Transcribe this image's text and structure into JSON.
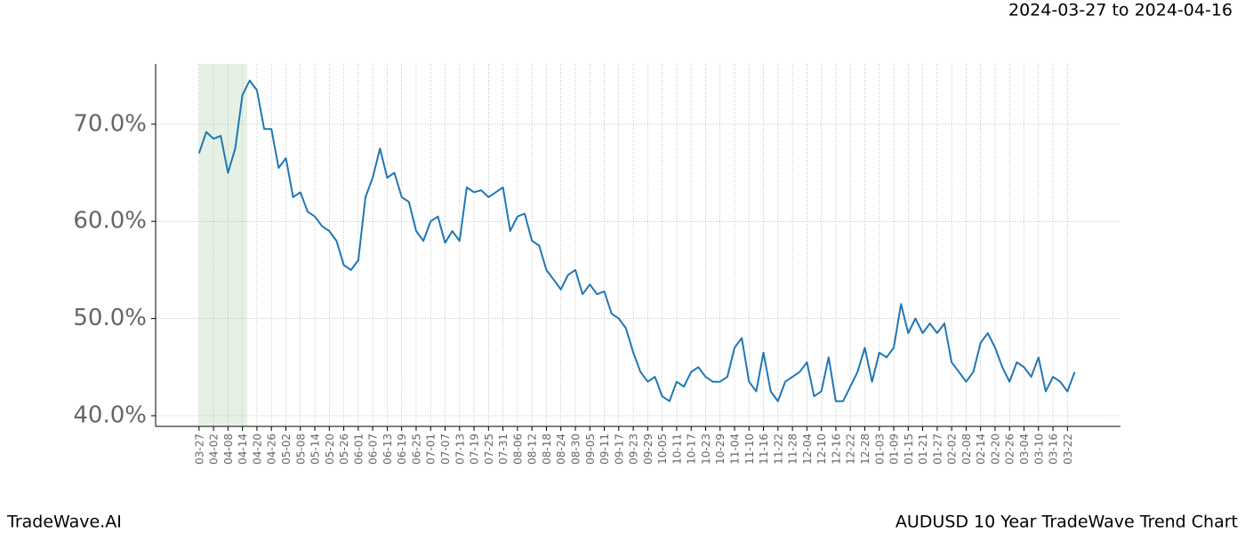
{
  "chart_data": {
    "type": "line",
    "title": "2024-03-27 to 2024-04-16",
    "footer_left": "TradeWave.AI",
    "footer_right": "AUDUSD 10 Year TradeWave Trend Chart",
    "color": "#1f77b4",
    "highlight": [
      0,
      20
    ],
    "highlight_color": "#d5e8d4",
    "grid": true,
    "xlim": [
      -18,
      382
    ],
    "ylim": [
      38.9,
      76.2
    ],
    "yticks": [
      {
        "value": 40,
        "label": "40.0%"
      },
      {
        "value": 50,
        "label": "50.0%"
      },
      {
        "value": 60,
        "label": "60.0%"
      },
      {
        "value": 70,
        "label": "70.0%"
      }
    ],
    "xticks": [
      {
        "value": 0,
        "label": "03-27"
      },
      {
        "value": 6,
        "label": "04-02"
      },
      {
        "value": 12,
        "label": "04-08"
      },
      {
        "value": 18,
        "label": "04-14"
      },
      {
        "value": 24,
        "label": "04-20"
      },
      {
        "value": 30,
        "label": "04-26"
      },
      {
        "value": 36,
        "label": "05-02"
      },
      {
        "value": 42,
        "label": "05-08"
      },
      {
        "value": 48,
        "label": "05-14"
      },
      {
        "value": 54,
        "label": "05-20"
      },
      {
        "value": 60,
        "label": "05-26"
      },
      {
        "value": 66,
        "label": "06-01"
      },
      {
        "value": 72,
        "label": "06-07"
      },
      {
        "value": 78,
        "label": "06-13"
      },
      {
        "value": 84,
        "label": "06-19"
      },
      {
        "value": 90,
        "label": "06-25"
      },
      {
        "value": 96,
        "label": "07-01"
      },
      {
        "value": 102,
        "label": "07-07"
      },
      {
        "value": 108,
        "label": "07-13"
      },
      {
        "value": 114,
        "label": "07-19"
      },
      {
        "value": 120,
        "label": "07-25"
      },
      {
        "value": 126,
        "label": "07-31"
      },
      {
        "value": 132,
        "label": "08-06"
      },
      {
        "value": 138,
        "label": "08-12"
      },
      {
        "value": 144,
        "label": "08-18"
      },
      {
        "value": 150,
        "label": "08-24"
      },
      {
        "value": 156,
        "label": "08-30"
      },
      {
        "value": 162,
        "label": "09-05"
      },
      {
        "value": 168,
        "label": "09-11"
      },
      {
        "value": 174,
        "label": "09-17"
      },
      {
        "value": 180,
        "label": "09-23"
      },
      {
        "value": 186,
        "label": "09-29"
      },
      {
        "value": 192,
        "label": "10-05"
      },
      {
        "value": 198,
        "label": "10-11"
      },
      {
        "value": 204,
        "label": "10-17"
      },
      {
        "value": 210,
        "label": "10-23"
      },
      {
        "value": 216,
        "label": "10-29"
      },
      {
        "value": 222,
        "label": "11-04"
      },
      {
        "value": 228,
        "label": "11-10"
      },
      {
        "value": 234,
        "label": "11-16"
      },
      {
        "value": 240,
        "label": "11-22"
      },
      {
        "value": 246,
        "label": "11-28"
      },
      {
        "value": 252,
        "label": "12-04"
      },
      {
        "value": 258,
        "label": "12-10"
      },
      {
        "value": 264,
        "label": "12-16"
      },
      {
        "value": 270,
        "label": "12-22"
      },
      {
        "value": 276,
        "label": "12-28"
      },
      {
        "value": 282,
        "label": "01-03"
      },
      {
        "value": 288,
        "label": "01-09"
      },
      {
        "value": 294,
        "label": "01-15"
      },
      {
        "value": 300,
        "label": "01-21"
      },
      {
        "value": 306,
        "label": "01-27"
      },
      {
        "value": 312,
        "label": "02-02"
      },
      {
        "value": 318,
        "label": "02-08"
      },
      {
        "value": 324,
        "label": "02-14"
      },
      {
        "value": 330,
        "label": "02-20"
      },
      {
        "value": 336,
        "label": "02-26"
      },
      {
        "value": 342,
        "label": "03-04"
      },
      {
        "value": 348,
        "label": "03-10"
      },
      {
        "value": 354,
        "label": "03-16"
      },
      {
        "value": 360,
        "label": "03-22"
      }
    ],
    "x": [
      0,
      3,
      6,
      9,
      12,
      15,
      18,
      21,
      24,
      27,
      30,
      33,
      36,
      39,
      42,
      45,
      48,
      51,
      54,
      57,
      60,
      63,
      66,
      69,
      72,
      75,
      78,
      81,
      84,
      87,
      90,
      93,
      96,
      99,
      102,
      105,
      108,
      111,
      114,
      117,
      120,
      123,
      126,
      129,
      132,
      135,
      138,
      141,
      144,
      147,
      150,
      153,
      156,
      159,
      162,
      165,
      168,
      171,
      174,
      177,
      180,
      183,
      186,
      189,
      192,
      195,
      198,
      201,
      204,
      207,
      210,
      213,
      216,
      219,
      222,
      225,
      228,
      231,
      234,
      237,
      240,
      243,
      246,
      249,
      252,
      255,
      258,
      261,
      264,
      267,
      270,
      273,
      276,
      279,
      282,
      285,
      288,
      291,
      294,
      297,
      300,
      303,
      306,
      309,
      312,
      315,
      318,
      321,
      324,
      327,
      330,
      333,
      336,
      339,
      342,
      345,
      348,
      351,
      354,
      357,
      360,
      363
    ],
    "values": [
      67.0,
      69.2,
      68.5,
      68.8,
      65.0,
      67.5,
      73.0,
      74.5,
      73.5,
      69.5,
      69.5,
      65.5,
      66.5,
      62.5,
      63.0,
      61.0,
      60.5,
      59.5,
      59.0,
      58.0,
      55.5,
      55.0,
      56.0,
      62.5,
      64.5,
      67.5,
      64.5,
      65.0,
      62.5,
      62.0,
      59.0,
      58.0,
      60.0,
      60.5,
      57.8,
      59.0,
      58.0,
      63.5,
      63.0,
      63.2,
      62.5,
      63.0,
      63.5,
      59.0,
      60.5,
      60.8,
      58.0,
      57.5,
      55.0,
      54.0,
      53.0,
      54.5,
      55.0,
      52.5,
      53.5,
      52.5,
      52.8,
      50.5,
      50.0,
      49.0,
      46.5,
      44.5,
      43.5,
      44.0,
      42.0,
      41.5,
      43.5,
      43.0,
      44.5,
      45.0,
      44.0,
      43.5,
      43.5,
      44.0,
      47.0,
      48.0,
      43.5,
      42.5,
      46.5,
      42.5,
      41.5,
      43.5,
      44.0,
      44.5,
      45.5,
      42.0,
      42.5,
      46.0,
      41.5,
      41.5,
      43.0,
      44.5,
      47.0,
      43.5,
      46.5,
      46.0,
      47.0,
      51.5,
      48.5,
      50.0,
      48.5,
      49.5,
      48.5,
      49.5,
      45.5,
      44.5,
      43.5,
      44.5,
      47.5,
      48.5,
      47.0,
      45.0,
      43.5,
      45.5,
      45.0,
      44.0,
      46.0,
      42.5,
      44.0,
      43.5,
      42.5,
      44.5
    ]
  }
}
